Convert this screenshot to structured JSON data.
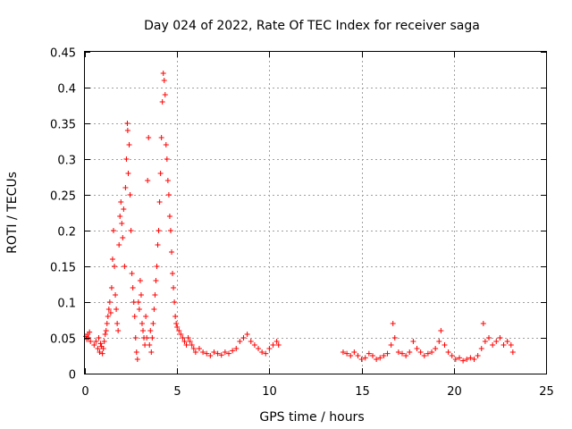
{
  "chart_data": {
    "type": "scatter",
    "title": "Day 024 of 2022, Rate Of TEC Index for receiver saga",
    "xlabel": "GPS time / hours",
    "ylabel": "ROTI / TECUs",
    "xlim": [
      0,
      25
    ],
    "ylim": [
      0,
      0.45
    ],
    "xticks": [
      0,
      5,
      10,
      15,
      20,
      25
    ],
    "yticks": [
      0,
      0.05,
      0.1,
      0.15,
      0.2,
      0.25,
      0.3,
      0.35,
      0.4,
      0.45
    ],
    "xtick_labels": [
      "0",
      "5",
      "10",
      "15",
      "20",
      "25"
    ],
    "ytick_labels": [
      "0",
      "0.05",
      "0.1",
      "0.15",
      "0.2",
      "0.25",
      "0.3",
      "0.35",
      "0.4",
      "0.45"
    ],
    "grid": true,
    "marker": "+",
    "color": "#ff0000",
    "series": [
      {
        "points": [
          [
            0.05,
            0.052
          ],
          [
            0.1,
            0.048
          ],
          [
            0.15,
            0.055
          ],
          [
            0.2,
            0.05
          ],
          [
            0.25,
            0.058
          ],
          [
            0.3,
            0.045
          ],
          [
            0.5,
            0.04
          ],
          [
            0.6,
            0.045
          ],
          [
            0.7,
            0.035
          ],
          [
            0.75,
            0.05
          ],
          [
            0.8,
            0.03
          ],
          [
            0.85,
            0.042
          ],
          [
            0.9,
            0.038
          ],
          [
            0.95,
            0.028
          ],
          [
            1.0,
            0.035
          ],
          [
            1.05,
            0.045
          ],
          [
            1.1,
            0.055
          ],
          [
            1.15,
            0.06
          ],
          [
            1.2,
            0.07
          ],
          [
            1.25,
            0.08
          ],
          [
            1.3,
            0.09
          ],
          [
            1.35,
            0.1
          ],
          [
            1.4,
            0.085
          ],
          [
            1.45,
            0.12
          ],
          [
            1.5,
            0.16
          ],
          [
            1.55,
            0.2
          ],
          [
            1.6,
            0.15
          ],
          [
            1.65,
            0.11
          ],
          [
            1.7,
            0.09
          ],
          [
            1.75,
            0.07
          ],
          [
            1.8,
            0.06
          ],
          [
            1.85,
            0.18
          ],
          [
            1.9,
            0.22
          ],
          [
            1.95,
            0.24
          ],
          [
            2.0,
            0.21
          ],
          [
            2.05,
            0.19
          ],
          [
            2.1,
            0.23
          ],
          [
            2.15,
            0.15
          ],
          [
            2.2,
            0.26
          ],
          [
            2.25,
            0.3
          ],
          [
            2.3,
            0.35
          ],
          [
            2.32,
            0.34
          ],
          [
            2.35,
            0.28
          ],
          [
            2.4,
            0.32
          ],
          [
            2.45,
            0.25
          ],
          [
            2.5,
            0.2
          ],
          [
            2.55,
            0.14
          ],
          [
            2.6,
            0.12
          ],
          [
            2.65,
            0.1
          ],
          [
            2.7,
            0.08
          ],
          [
            2.75,
            0.05
          ],
          [
            2.8,
            0.03
          ],
          [
            2.85,
            0.02
          ],
          [
            2.9,
            0.1
          ],
          [
            2.95,
            0.09
          ],
          [
            3.0,
            0.13
          ],
          [
            3.05,
            0.11
          ],
          [
            3.1,
            0.07
          ],
          [
            3.15,
            0.06
          ],
          [
            3.2,
            0.05
          ],
          [
            3.25,
            0.04
          ],
          [
            3.3,
            0.08
          ],
          [
            3.35,
            0.05
          ],
          [
            3.4,
            0.27
          ],
          [
            3.45,
            0.33
          ],
          [
            3.5,
            0.04
          ],
          [
            3.55,
            0.06
          ],
          [
            3.6,
            0.03
          ],
          [
            3.65,
            0.05
          ],
          [
            3.7,
            0.07
          ],
          [
            3.75,
            0.09
          ],
          [
            3.8,
            0.11
          ],
          [
            3.85,
            0.13
          ],
          [
            3.9,
            0.15
          ],
          [
            3.95,
            0.18
          ],
          [
            4.0,
            0.2
          ],
          [
            4.05,
            0.24
          ],
          [
            4.1,
            0.28
          ],
          [
            4.15,
            0.33
          ],
          [
            4.2,
            0.38
          ],
          [
            4.25,
            0.42
          ],
          [
            4.3,
            0.41
          ],
          [
            4.35,
            0.39
          ],
          [
            4.4,
            0.32
          ],
          [
            4.45,
            0.3
          ],
          [
            4.5,
            0.27
          ],
          [
            4.55,
            0.25
          ],
          [
            4.6,
            0.22
          ],
          [
            4.65,
            0.2
          ],
          [
            4.7,
            0.17
          ],
          [
            4.75,
            0.14
          ],
          [
            4.8,
            0.12
          ],
          [
            4.85,
            0.1
          ],
          [
            4.9,
            0.08
          ],
          [
            4.95,
            0.07
          ],
          [
            5.0,
            0.065
          ],
          [
            5.1,
            0.06
          ],
          [
            5.2,
            0.055
          ],
          [
            5.3,
            0.05
          ],
          [
            5.4,
            0.045
          ],
          [
            5.5,
            0.04
          ],
          [
            5.6,
            0.05
          ],
          [
            5.7,
            0.045
          ],
          [
            5.8,
            0.04
          ],
          [
            5.9,
            0.035
          ],
          [
            6.0,
            0.03
          ],
          [
            6.2,
            0.035
          ],
          [
            6.4,
            0.03
          ],
          [
            6.6,
            0.028
          ],
          [
            6.8,
            0.025
          ],
          [
            7.0,
            0.03
          ],
          [
            7.2,
            0.028
          ],
          [
            7.4,
            0.026
          ],
          [
            7.6,
            0.03
          ],
          [
            7.8,
            0.028
          ],
          [
            8.0,
            0.032
          ],
          [
            8.2,
            0.035
          ],
          [
            8.4,
            0.045
          ],
          [
            8.6,
            0.05
          ],
          [
            8.8,
            0.055
          ],
          [
            9.0,
            0.045
          ],
          [
            9.2,
            0.04
          ],
          [
            9.4,
            0.035
          ],
          [
            9.6,
            0.03
          ],
          [
            9.8,
            0.028
          ],
          [
            10.0,
            0.035
          ],
          [
            10.2,
            0.04
          ],
          [
            10.4,
            0.045
          ],
          [
            10.5,
            0.04
          ],
          [
            14.0,
            0.03
          ],
          [
            14.2,
            0.028
          ],
          [
            14.4,
            0.025
          ],
          [
            14.6,
            0.03
          ],
          [
            14.8,
            0.025
          ],
          [
            15.0,
            0.02
          ],
          [
            15.2,
            0.022
          ],
          [
            15.4,
            0.028
          ],
          [
            15.6,
            0.025
          ],
          [
            15.8,
            0.02
          ],
          [
            16.0,
            0.022
          ],
          [
            16.2,
            0.025
          ],
          [
            16.4,
            0.028
          ],
          [
            16.6,
            0.04
          ],
          [
            16.7,
            0.07
          ],
          [
            16.8,
            0.05
          ],
          [
            17.0,
            0.03
          ],
          [
            17.2,
            0.028
          ],
          [
            17.4,
            0.025
          ],
          [
            17.6,
            0.03
          ],
          [
            17.8,
            0.045
          ],
          [
            18.0,
            0.035
          ],
          [
            18.2,
            0.03
          ],
          [
            18.4,
            0.025
          ],
          [
            18.6,
            0.028
          ],
          [
            18.8,
            0.03
          ],
          [
            19.0,
            0.035
          ],
          [
            19.2,
            0.045
          ],
          [
            19.3,
            0.06
          ],
          [
            19.5,
            0.04
          ],
          [
            19.7,
            0.03
          ],
          [
            19.9,
            0.025
          ],
          [
            20.1,
            0.02
          ],
          [
            20.3,
            0.022
          ],
          [
            20.5,
            0.018
          ],
          [
            20.7,
            0.02
          ],
          [
            20.9,
            0.022
          ],
          [
            21.1,
            0.02
          ],
          [
            21.3,
            0.025
          ],
          [
            21.5,
            0.035
          ],
          [
            21.6,
            0.07
          ],
          [
            21.7,
            0.045
          ],
          [
            21.9,
            0.05
          ],
          [
            22.1,
            0.04
          ],
          [
            22.3,
            0.045
          ],
          [
            22.5,
            0.05
          ],
          [
            22.7,
            0.04
          ],
          [
            22.9,
            0.045
          ],
          [
            23.1,
            0.04
          ],
          [
            23.2,
            0.03
          ]
        ]
      }
    ]
  }
}
